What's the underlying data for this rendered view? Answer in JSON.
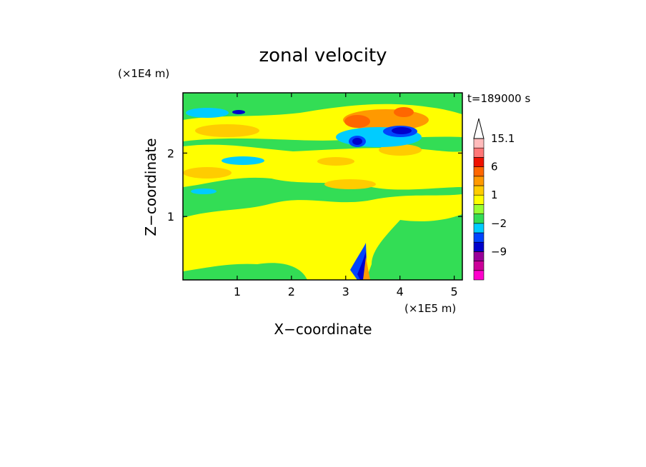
{
  "chart_data": {
    "type": "heatmap",
    "title": "zonal velocity",
    "time_label": "t=189000 s",
    "xlabel": "X−coordinate",
    "ylabel": "Z−coordinate",
    "x_unit_label": "(×1E5 m)",
    "y_unit_label": "(×1E4 m)",
    "xlim": [
      0,
      5.15
    ],
    "ylim": [
      0,
      2.95
    ],
    "x_ticks": [
      1,
      2,
      3,
      4,
      5
    ],
    "x_tick_labels": [
      "1",
      "2",
      "3",
      "4",
      "5"
    ],
    "y_ticks": [
      1,
      2
    ],
    "y_tick_labels": [
      "1",
      "2"
    ],
    "colorbar": {
      "levels": [
        -15,
        -12,
        -9,
        -6,
        -4,
        -2,
        -1,
        0,
        1,
        2,
        4,
        6,
        9,
        12,
        15.1
      ],
      "colors": [
        "#ff00cc",
        "#cc0099",
        "#990099",
        "#0000cc",
        "#0044ff",
        "#00ccff",
        "#33dd55",
        "#99ff33",
        "#ffff00",
        "#ffcc00",
        "#ff9900",
        "#ff6600",
        "#ee1100",
        "#ff7777",
        "#ffbbbb",
        "#ffffff"
      ],
      "labeled_levels": [
        15.1,
        6,
        1,
        -2,
        -9
      ],
      "labels": [
        "15.1",
        "6",
        "1",
        "−2",
        "−9"
      ]
    },
    "grid": false,
    "legend": "right colorbar"
  }
}
